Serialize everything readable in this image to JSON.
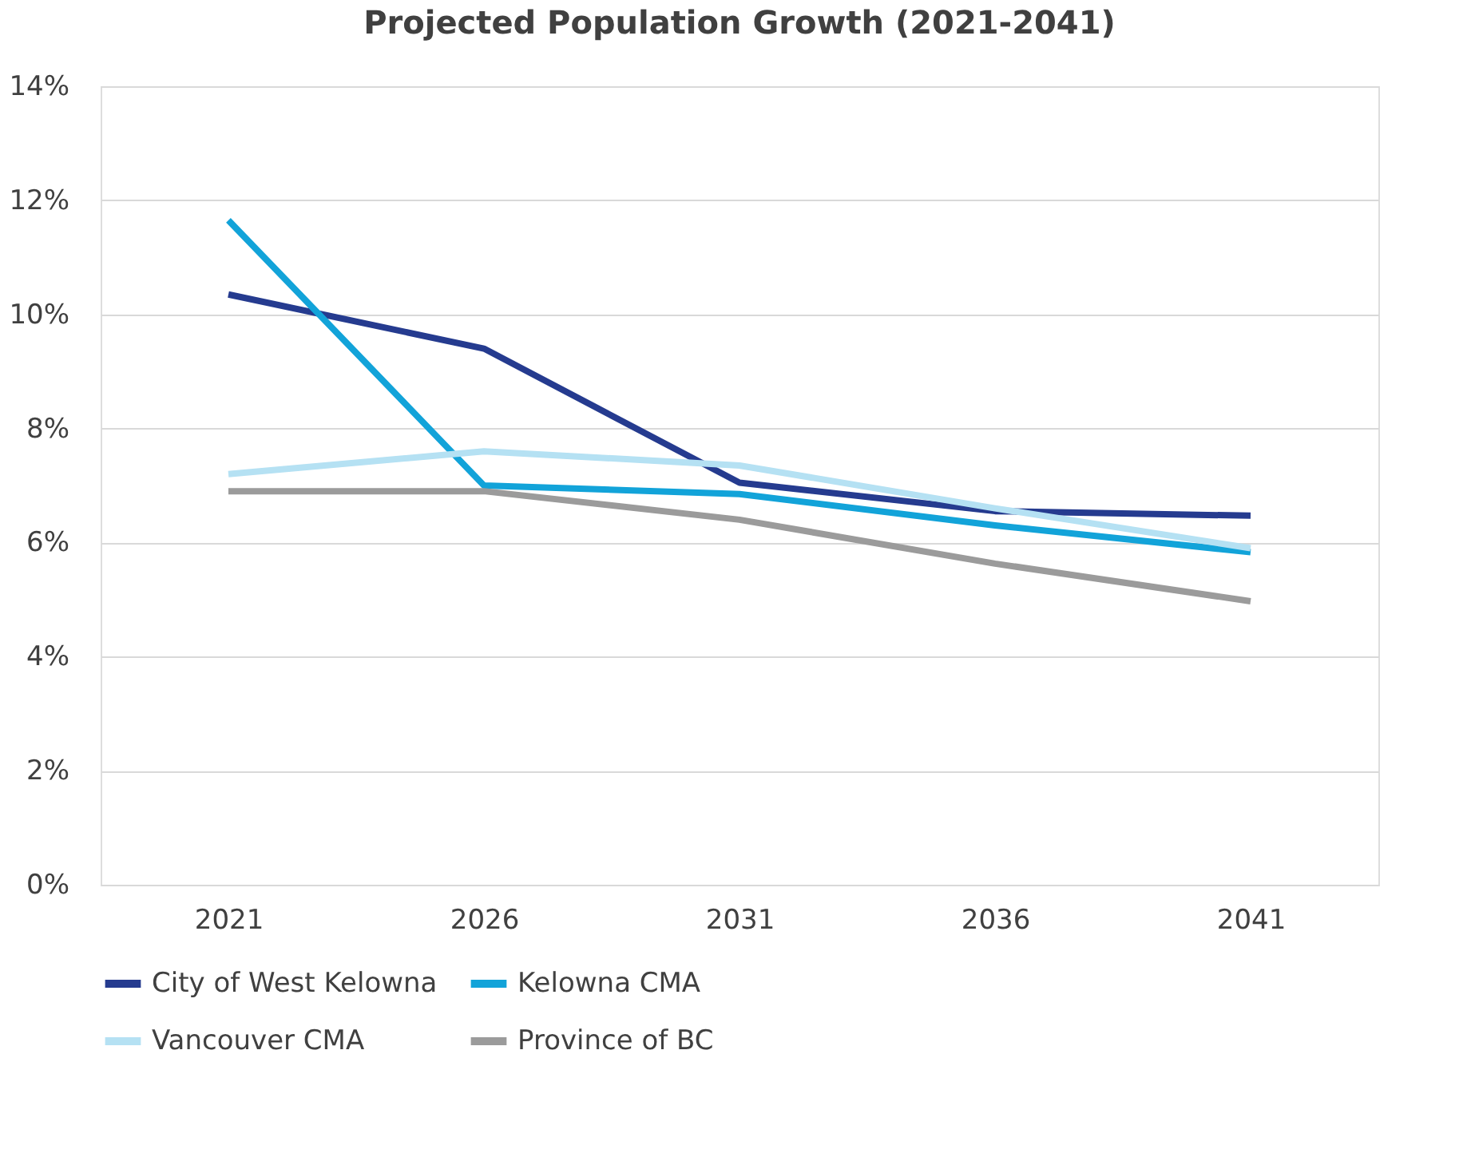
{
  "chart_data": {
    "type": "line",
    "title": "Projected Population Growth (2021-2041)",
    "categories": [
      "2021",
      "2026",
      "2031",
      "2036",
      "2041"
    ],
    "series": [
      {
        "name": "City of West Kelowna",
        "color": "#253b8f",
        "values": [
          10.35,
          9.4,
          7.05,
          6.55,
          6.47
        ]
      },
      {
        "name": "Kelowna CMA",
        "color": "#12a3d9",
        "values": [
          11.65,
          7.0,
          6.85,
          6.3,
          5.83
        ]
      },
      {
        "name": "Vancouver CMA",
        "color": "#b5e1f3",
        "values": [
          7.2,
          7.6,
          7.35,
          6.6,
          5.9
        ]
      },
      {
        "name": "Province of BC",
        "color": "#9b9b9b",
        "values": [
          6.9,
          6.9,
          6.4,
          5.63,
          4.97
        ]
      }
    ],
    "ylim": [
      0,
      14
    ],
    "yticks": [
      {
        "value": 0,
        "label": "0%"
      },
      {
        "value": 2,
        "label": "2%"
      },
      {
        "value": 4,
        "label": "4%"
      },
      {
        "value": 6,
        "label": "6%"
      },
      {
        "value": 8,
        "label": "8%"
      },
      {
        "value": 10,
        "label": "10%"
      },
      {
        "value": 12,
        "label": "12%"
      },
      {
        "value": 14,
        "label": "14%"
      }
    ],
    "grid": "y",
    "legend": "bottom",
    "marker": "none",
    "line_style": "solid"
  }
}
